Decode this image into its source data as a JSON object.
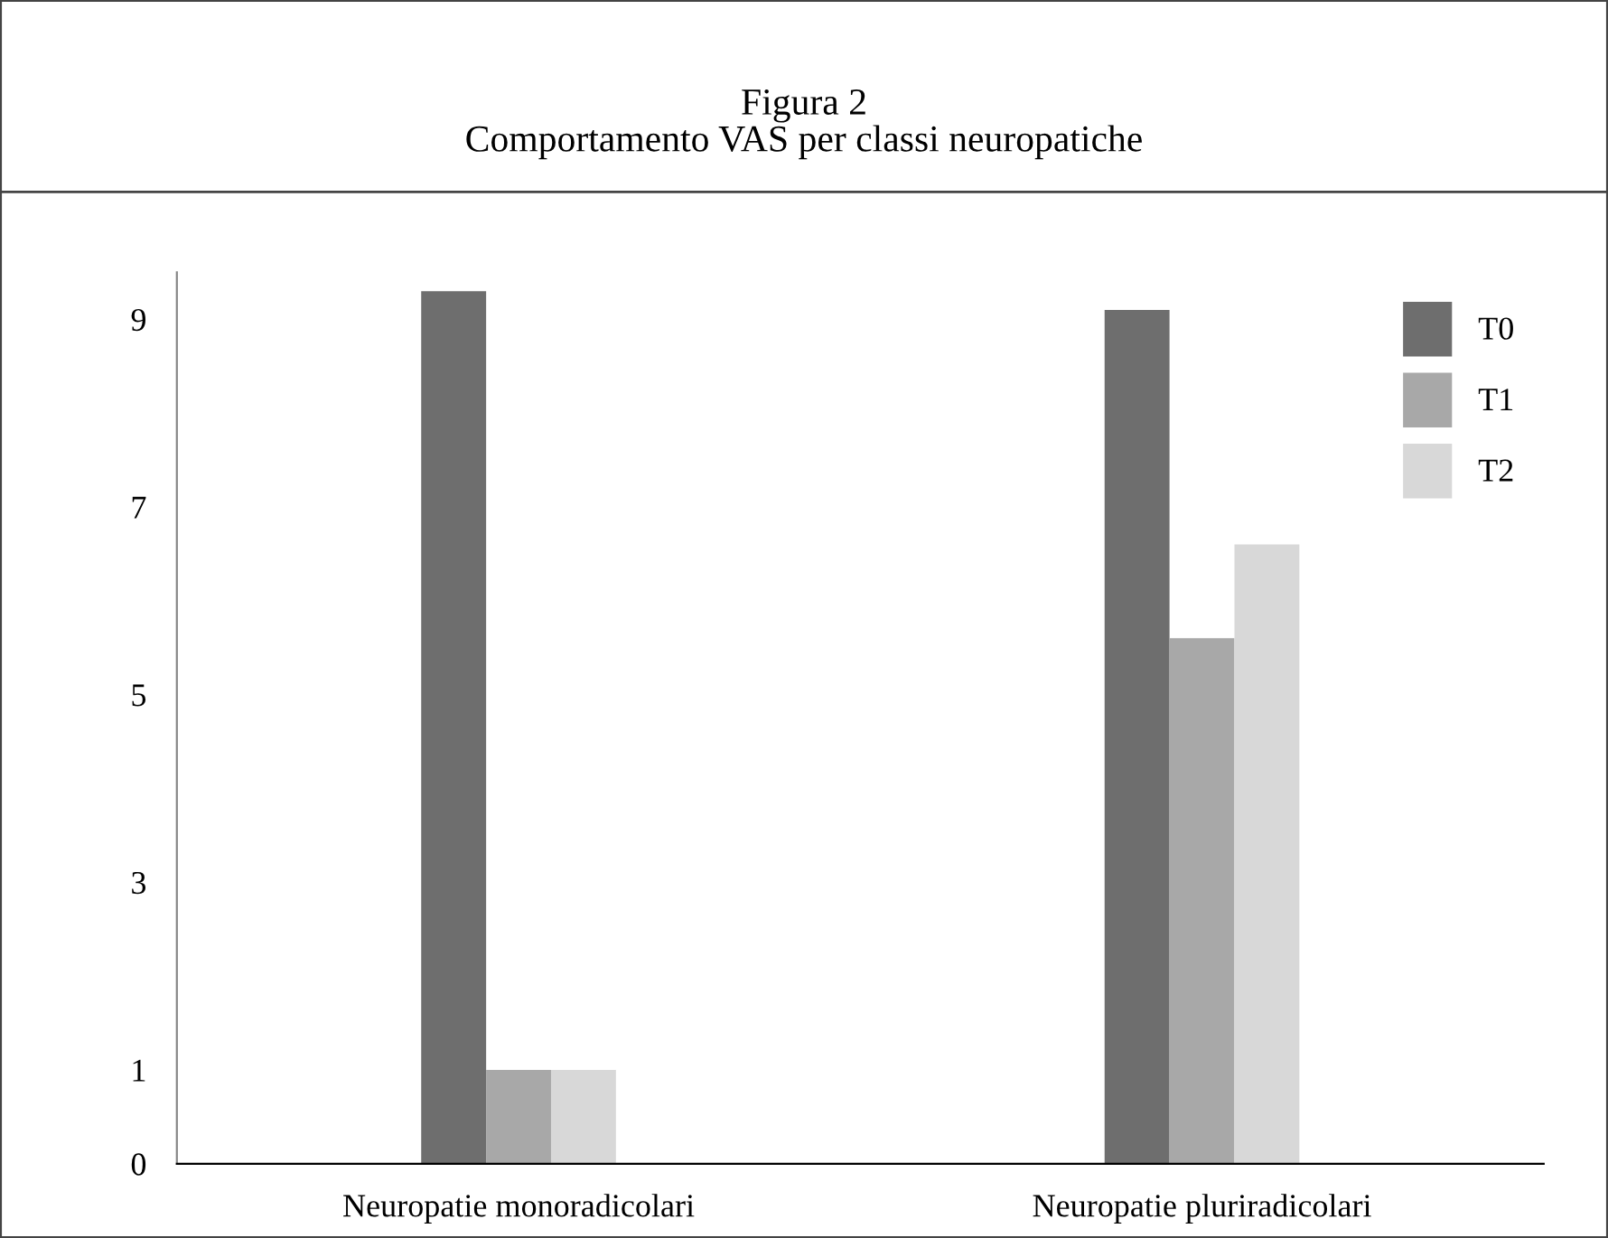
{
  "chart_data": {
    "type": "bar",
    "title": "Figura 2\nComportamento VAS per classi neuropatiche",
    "categories": [
      "Neuropatie monoradicolari",
      "Neuropatie pluriradicolari"
    ],
    "series": [
      {
        "name": "T0",
        "color": "#6e6e6e",
        "values": [
          9.3,
          9.1
        ]
      },
      {
        "name": "T1",
        "color": "#a8a8a8",
        "values": [
          1,
          5.6
        ]
      },
      {
        "name": "T2",
        "color": "#d8d8d8",
        "values": [
          1,
          6.6
        ]
      }
    ],
    "ylim": [
      0,
      9.5
    ],
    "yticks": [
      0,
      1,
      3,
      5,
      7,
      9
    ],
    "grid": false,
    "legend": "top right"
  }
}
